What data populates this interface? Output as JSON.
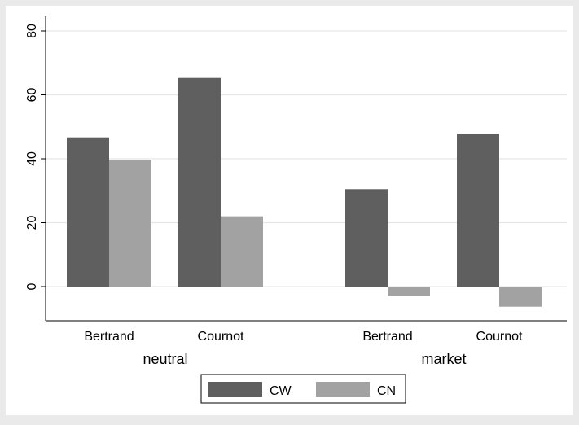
{
  "chart_data": {
    "type": "bar",
    "groups": [
      {
        "label": "neutral",
        "categories": [
          "Bertrand",
          "Cournot"
        ]
      },
      {
        "label": "market",
        "categories": [
          "Bertrand",
          "Cournot"
        ]
      }
    ],
    "series": [
      {
        "name": "CW",
        "color": "#5f5f5f",
        "values": [
          46.7,
          65.3,
          30.5,
          47.8
        ]
      },
      {
        "name": "CN",
        "color": "#a2a2a2",
        "values": [
          39.6,
          22.0,
          -3.0,
          -6.3
        ]
      }
    ],
    "ylim": [
      -10,
      85
    ],
    "yticks": [
      0,
      20,
      40,
      60,
      80
    ],
    "grid": true,
    "legend_position": "bottom"
  }
}
